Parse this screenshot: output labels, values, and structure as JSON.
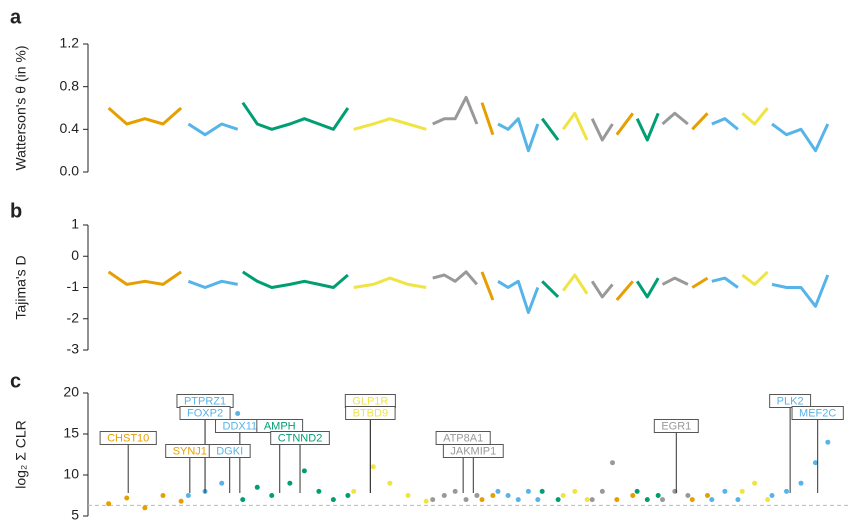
{
  "chart_data": [
    {
      "type": "line",
      "panel": "a",
      "y_label": "Watterson's θ (in %)",
      "xlim": [
        0,
        100
      ],
      "ylim": [
        0,
        1.2
      ],
      "yticks": [
        {
          "value": 0,
          "label": "0.0"
        },
        0.4,
        0.8,
        1.2
      ],
      "series": [
        {
          "color": "#e69f00",
          "x": [
            0.5,
            3,
            5.5,
            8,
            10.5
          ],
          "values": [
            0.6,
            0.45,
            0.5,
            0.45,
            0.6
          ]
        },
        {
          "color": "#56b4e9",
          "x": [
            11.5,
            13.8,
            16.1,
            18.3
          ],
          "values": [
            0.45,
            0.35,
            0.45,
            0.4
          ]
        },
        {
          "color": "#009e73",
          "x": [
            19,
            21,
            23,
            25.5,
            27.5,
            29.5,
            31.5,
            33.5
          ],
          "values": [
            0.65,
            0.45,
            0.4,
            0.45,
            0.5,
            0.45,
            0.4,
            0.6
          ]
        },
        {
          "color": "#f0e442",
          "x": [
            34.3,
            37,
            39.3,
            41.8,
            44.3
          ],
          "values": [
            0.4,
            0.45,
            0.5,
            0.45,
            0.4
          ]
        },
        {
          "color": "#999999",
          "x": [
            45.2,
            46.8,
            48.3,
            49.8,
            51.3
          ],
          "values": [
            0.45,
            0.5,
            0.5,
            0.7,
            0.45
          ]
        },
        {
          "color": "#e69f00",
          "x": [
            52,
            53.5
          ],
          "values": [
            0.65,
            0.35
          ]
        },
        {
          "color": "#56b4e9",
          "x": [
            54.2,
            55.6,
            57,
            58.4,
            59.7
          ],
          "values": [
            0.45,
            0.4,
            0.5,
            0.2,
            0.45
          ]
        },
        {
          "color": "#009e73",
          "x": [
            60.3,
            62.5
          ],
          "values": [
            0.5,
            0.3
          ]
        },
        {
          "color": "#f0e442",
          "x": [
            63.2,
            64.8,
            66.5
          ],
          "values": [
            0.4,
            0.55,
            0.3
          ]
        },
        {
          "color": "#999999",
          "x": [
            67.2,
            68.6,
            70
          ],
          "values": [
            0.5,
            0.3,
            0.45
          ]
        },
        {
          "color": "#e69f00",
          "x": [
            70.6,
            72.8
          ],
          "values": [
            0.35,
            0.55
          ]
        },
        {
          "color": "#009e73",
          "x": [
            73.4,
            74.8,
            76.3
          ],
          "values": [
            0.5,
            0.3,
            0.55
          ]
        },
        {
          "color": "#999999",
          "x": [
            76.9,
            78.6,
            80.4
          ],
          "values": [
            0.45,
            0.55,
            0.45
          ]
        },
        {
          "color": "#e69f00",
          "x": [
            81,
            83.1
          ],
          "values": [
            0.4,
            0.55
          ]
        },
        {
          "color": "#56b4e9",
          "x": [
            83.7,
            85.5,
            87.3
          ],
          "values": [
            0.45,
            0.5,
            0.4
          ]
        },
        {
          "color": "#f0e442",
          "x": [
            87.9,
            89.6,
            91.4
          ],
          "values": [
            0.55,
            0.45,
            0.6
          ]
        },
        {
          "color": "#56b4e9",
          "x": [
            92,
            94,
            96,
            98,
            99.7
          ],
          "values": [
            0.45,
            0.35,
            0.4,
            0.2,
            0.45
          ]
        }
      ]
    },
    {
      "type": "line",
      "panel": "b",
      "y_label": "Tajima's D",
      "xlim": [
        0,
        100
      ],
      "ylim": [
        -3,
        1
      ],
      "yticks": [
        -3,
        -2,
        -1,
        0,
        1
      ],
      "series": [
        {
          "color": "#e69f00",
          "x": [
            0.5,
            3,
            5.5,
            8,
            10.5
          ],
          "values": [
            -0.5,
            -0.9,
            -0.8,
            -0.9,
            -0.5
          ]
        },
        {
          "color": "#56b4e9",
          "x": [
            11.5,
            13.8,
            16.1,
            18.3
          ],
          "values": [
            -0.8,
            -1.0,
            -0.8,
            -0.9
          ]
        },
        {
          "color": "#009e73",
          "x": [
            19,
            21,
            23,
            25.5,
            27.5,
            29.5,
            31.5,
            33.5
          ],
          "values": [
            -0.5,
            -0.8,
            -1.0,
            -0.9,
            -0.8,
            -0.9,
            -1.0,
            -0.6
          ]
        },
        {
          "color": "#f0e442",
          "x": [
            34.3,
            37,
            39.3,
            41.8,
            44.3
          ],
          "values": [
            -1.0,
            -0.9,
            -0.7,
            -0.9,
            -1.0
          ]
        },
        {
          "color": "#999999",
          "x": [
            45.2,
            46.8,
            48.3,
            49.8,
            51.3
          ],
          "values": [
            -0.7,
            -0.6,
            -0.8,
            -0.5,
            -0.9
          ]
        },
        {
          "color": "#e69f00",
          "x": [
            52,
            53.5
          ],
          "values": [
            -0.5,
            -1.4
          ]
        },
        {
          "color": "#56b4e9",
          "x": [
            54.2,
            55.6,
            57,
            58.4,
            59.7
          ],
          "values": [
            -0.8,
            -1.0,
            -0.8,
            -1.8,
            -1.0
          ]
        },
        {
          "color": "#009e73",
          "x": [
            60.3,
            62.5
          ],
          "values": [
            -0.8,
            -1.3
          ]
        },
        {
          "color": "#f0e442",
          "x": [
            63.2,
            64.8,
            66.5
          ],
          "values": [
            -1.1,
            -0.6,
            -1.2
          ]
        },
        {
          "color": "#999999",
          "x": [
            67.2,
            68.6,
            70
          ],
          "values": [
            -0.8,
            -1.3,
            -0.9
          ]
        },
        {
          "color": "#e69f00",
          "x": [
            70.6,
            72.8
          ],
          "values": [
            -1.4,
            -0.8
          ]
        },
        {
          "color": "#009e73",
          "x": [
            73.4,
            74.8,
            76.3
          ],
          "values": [
            -0.8,
            -1.3,
            -0.7
          ]
        },
        {
          "color": "#999999",
          "x": [
            76.9,
            78.6,
            80.4
          ],
          "values": [
            -0.9,
            -0.7,
            -0.9
          ]
        },
        {
          "color": "#e69f00",
          "x": [
            81,
            83.1
          ],
          "values": [
            -1.0,
            -0.7
          ]
        },
        {
          "color": "#56b4e9",
          "x": [
            83.7,
            85.5,
            87.3
          ],
          "values": [
            -0.8,
            -0.7,
            -1.0
          ]
        },
        {
          "color": "#f0e442",
          "x": [
            87.9,
            89.6,
            91.4
          ],
          "values": [
            -0.6,
            -0.9,
            -0.5
          ]
        },
        {
          "color": "#56b4e9",
          "x": [
            92,
            94,
            96,
            98,
            99.7
          ],
          "values": [
            -0.9,
            -1.0,
            -1.0,
            -1.6,
            -0.6
          ]
        }
      ]
    },
    {
      "type": "scatter",
      "panel": "c",
      "y_label": "log₂ Σ CLR",
      "xlim": [
        0,
        100
      ],
      "ylim": [
        5,
        20
      ],
      "yticks": [
        5,
        10,
        15,
        20
      ],
      "threshold": 6.3,
      "series": [
        {
          "color": "#e69f00",
          "x": [
            0.5,
            3,
            5.5,
            8,
            10.5
          ],
          "values": [
            6.5,
            7.2,
            6.0,
            7.5,
            6.8
          ]
        },
        {
          "color": "#56b4e9",
          "x": [
            11.5,
            13.8,
            16.1,
            18.3
          ],
          "values": [
            7.5,
            8,
            9,
            17.5
          ]
        },
        {
          "color": "#009e73",
          "x": [
            19,
            21,
            23,
            25.5,
            27.5,
            29.5,
            31.5,
            33.5
          ],
          "values": [
            7,
            8.5,
            7.5,
            9,
            10.5,
            8,
            7,
            7.5
          ]
        },
        {
          "color": "#f0e442",
          "x": [
            34.3,
            37,
            39.3,
            41.8,
            44.3
          ],
          "values": [
            8,
            11,
            9,
            7.5,
            6.8
          ]
        },
        {
          "color": "#999999",
          "x": [
            45.2,
            46.8,
            48.3,
            49.8,
            51.3
          ],
          "values": [
            7,
            7.5,
            8,
            7,
            7.5
          ]
        },
        {
          "color": "#e69f00",
          "x": [
            52,
            53.5
          ],
          "values": [
            7,
            7.5
          ]
        },
        {
          "color": "#56b4e9",
          "x": [
            54.2,
            55.6,
            57,
            58.4,
            59.7
          ],
          "values": [
            8,
            7.5,
            7,
            8,
            7
          ]
        },
        {
          "color": "#009e73",
          "x": [
            60.3,
            62.5
          ],
          "values": [
            8,
            7
          ]
        },
        {
          "color": "#f0e442",
          "x": [
            63.2,
            64.8,
            66.5
          ],
          "values": [
            7.5,
            8,
            7
          ]
        },
        {
          "color": "#999999",
          "x": [
            67.2,
            68.6,
            70
          ],
          "values": [
            7,
            8,
            11.5
          ]
        },
        {
          "color": "#e69f00",
          "x": [
            70.6,
            72.8
          ],
          "values": [
            7,
            7.5
          ]
        },
        {
          "color": "#009e73",
          "x": [
            73.4,
            74.8,
            76.3
          ],
          "values": [
            8,
            7,
            7.5
          ]
        },
        {
          "color": "#999999",
          "x": [
            76.9,
            78.6,
            80.4
          ],
          "values": [
            7,
            8,
            7.5
          ]
        },
        {
          "color": "#e69f00",
          "x": [
            81,
            83.1
          ],
          "values": [
            7,
            7.5
          ]
        },
        {
          "color": "#56b4e9",
          "x": [
            83.7,
            85.5,
            87.3
          ],
          "values": [
            7,
            8,
            7
          ]
        },
        {
          "color": "#f0e442",
          "x": [
            87.9,
            89.6,
            91.4
          ],
          "values": [
            8,
            9,
            7
          ]
        },
        {
          "color": "#56b4e9",
          "x": [
            92,
            94,
            96,
            98,
            99.7
          ],
          "values": [
            7.5,
            8,
            9,
            11.5,
            14
          ]
        }
      ],
      "genes": [
        {
          "label": "CHST10",
          "x": 3.2,
          "color": "#e69f00"
        },
        {
          "label": "PTPRZ1",
          "x": 13.8,
          "color": "#56b4e9"
        },
        {
          "label": "FOXP2",
          "x": 13.8,
          "color": "#56b4e9"
        },
        {
          "label": "SYNJ1",
          "x": 11.7,
          "color": "#e69f00"
        },
        {
          "label": "DGKI",
          "x": 17.2,
          "color": "#56b4e9"
        },
        {
          "label": "DDX11",
          "x": 18.6,
          "color": "#56b4e9"
        },
        {
          "label": "AMPH",
          "x": 24.1,
          "color": "#009e73"
        },
        {
          "label": "CTNND2",
          "x": 26.9,
          "color": "#009e73"
        },
        {
          "label": "GLP1R",
          "x": 36.6,
          "color": "#f0e442"
        },
        {
          "label": "BTBD9",
          "x": 36.6,
          "color": "#f0e442"
        },
        {
          "label": "ATP8A1",
          "x": 49.4,
          "color": "#999999"
        },
        {
          "label": "JAKMIP1",
          "x": 50.8,
          "color": "#999999"
        },
        {
          "label": "EGR1",
          "x": 78.8,
          "color": "#999999"
        },
        {
          "label": "PLK2",
          "x": 94.5,
          "color": "#56b4e9"
        },
        {
          "label": "MEF2C",
          "x": 98.3,
          "color": "#56b4e9"
        }
      ]
    }
  ]
}
